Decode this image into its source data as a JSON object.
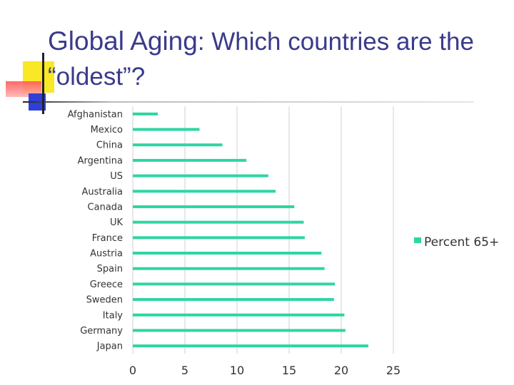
{
  "slide": {
    "title_main": "Global Aging",
    "title_sub": ": Which countries are the “oldest”?"
  },
  "colors": {
    "bar": "#2ed5a3",
    "grid": "#d0d0d0",
    "title": "#3a3a8c"
  },
  "chart_data": {
    "type": "bar",
    "orientation": "horizontal",
    "categories": [
      "Afghanistan",
      "Mexico",
      "China",
      "Argentina",
      "US",
      "Australia",
      "Canada",
      "UK",
      "France",
      "Austria",
      "Spain",
      "Greece",
      "Sweden",
      "Italy",
      "Germany",
      "Japan"
    ],
    "series": [
      {
        "name": "Percent 65+",
        "values": [
          2.4,
          6.4,
          8.6,
          10.9,
          13.0,
          13.7,
          15.5,
          16.4,
          16.5,
          18.1,
          18.4,
          19.4,
          19.3,
          20.3,
          20.4,
          22.6
        ]
      }
    ],
    "xlim": [
      0,
      25
    ],
    "xticks": [
      "0",
      "5",
      "10",
      "15",
      "20",
      "25"
    ],
    "grid": true,
    "legend": "right"
  }
}
